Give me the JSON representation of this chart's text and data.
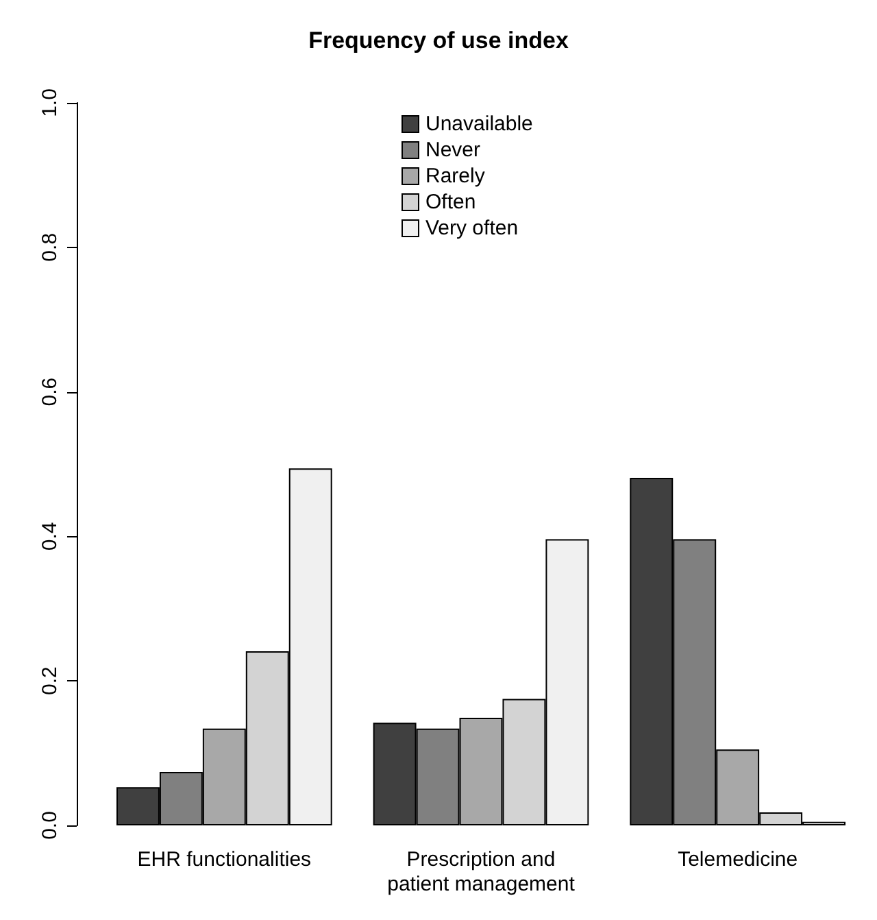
{
  "chart_data": {
    "type": "bar",
    "title": "Frequency of use index",
    "categories": [
      "EHR functionalities",
      "Prescription and\npatient management",
      "Telemedicine"
    ],
    "series": [
      {
        "name": "Unavailable",
        "color": "#404040",
        "values": [
          0.053,
          0.142,
          0.481
        ]
      },
      {
        "name": "Never",
        "color": "#808080",
        "values": [
          0.074,
          0.134,
          0.396
        ]
      },
      {
        "name": "Rarely",
        "color": "#a8a8a8",
        "values": [
          0.134,
          0.149,
          0.105
        ]
      },
      {
        "name": "Often",
        "color": "#d3d3d3",
        "values": [
          0.241,
          0.175,
          0.018
        ]
      },
      {
        "name": "Very often",
        "color": "#f0f0f0",
        "values": [
          0.494,
          0.396,
          0.005
        ]
      }
    ],
    "ylim": [
      0,
      1
    ],
    "yticks": [
      {
        "value": 0,
        "label": "0.0"
      },
      {
        "value": 0.2,
        "label": "0.2"
      },
      {
        "value": 0.4,
        "label": "0.4"
      },
      {
        "value": 0.6,
        "label": "0.6"
      },
      {
        "value": 0.8,
        "label": "0.8"
      },
      {
        "value": 1,
        "label": "1.0"
      }
    ],
    "grid": false,
    "legend": "top"
  }
}
